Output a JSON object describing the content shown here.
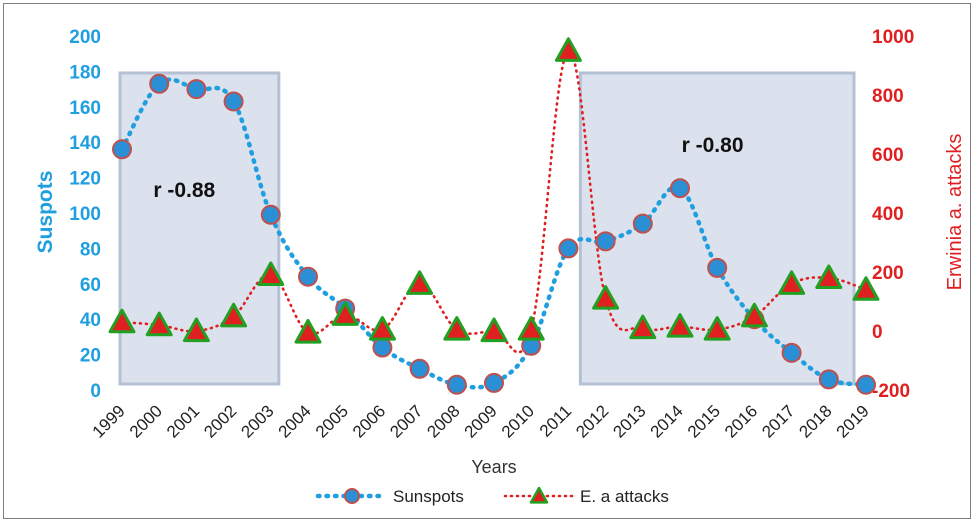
{
  "chart_data": {
    "type": "line",
    "x": [
      "1999",
      "2000",
      "2001",
      "2002",
      "2003",
      "2004",
      "2005",
      "2006",
      "2007",
      "2008",
      "2009",
      "2010",
      "2011",
      "2012",
      "2013",
      "2014",
      "2015",
      "2016",
      "2017",
      "2018",
      "2019"
    ],
    "xlabel": "Years",
    "ylabel_left": "Suspots",
    "ylabel_right": "Erwinia a. attacks",
    "ylim_left": [
      0,
      200
    ],
    "ylim_right": [
      -200,
      1000
    ],
    "yticks_left": [
      "0",
      "20",
      "40",
      "60",
      "80",
      "100",
      "120",
      "140",
      "160",
      "180",
      "200"
    ],
    "yticks_right": [
      "-200",
      "0",
      "200",
      "400",
      "600",
      "800",
      "1000"
    ],
    "series": [
      {
        "name": "Sunspots",
        "axis": "left",
        "color": "#1f9fe0",
        "marker_fill": "#2b8fd6",
        "marker_stroke": "#c0504d",
        "values": [
          136,
          173,
          170,
          163,
          99,
          64,
          46,
          24,
          12,
          3,
          4,
          25,
          80,
          84,
          94,
          114,
          69,
          40,
          21,
          6,
          3
        ]
      },
      {
        "name": "E. a attacks",
        "axis": "right",
        "color": "#e02020",
        "marker_fill": "#e02020",
        "marker_stroke": "#22a022",
        "values": [
          30,
          20,
          0,
          50,
          190,
          -5,
          55,
          5,
          160,
          5,
          0,
          5,
          950,
          110,
          10,
          15,
          5,
          50,
          160,
          180,
          140
        ]
      }
    ],
    "annotations": [
      {
        "text": "r -0.88",
        "from": "1999",
        "to": "2003"
      },
      {
        "text": "r -0.80",
        "from": "2011",
        "to": "2019"
      }
    ],
    "grid": false,
    "legend": "bottom"
  }
}
